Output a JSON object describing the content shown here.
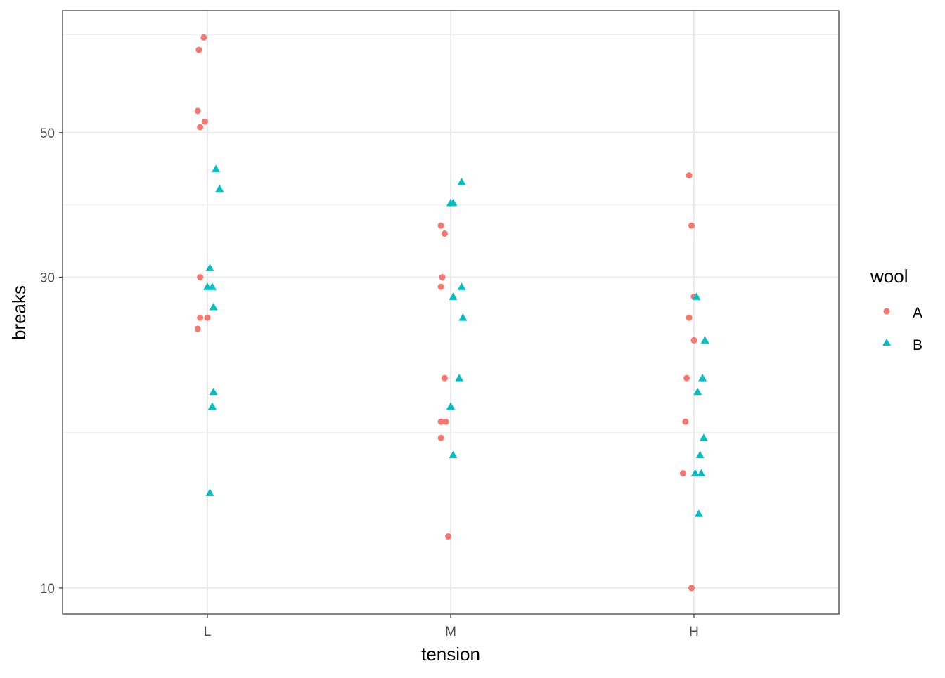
{
  "chart_data": {
    "type": "scatter",
    "title": "",
    "xlabel": "tension",
    "ylabel": "breaks",
    "y_scale": "log10",
    "ylim": [
      9.12,
      77.0
    ],
    "categories": [
      "L",
      "M",
      "H"
    ],
    "y_ticks": [
      10,
      30,
      50
    ],
    "y_tick_labels": [
      "10",
      "30",
      "50"
    ],
    "y_minor_gridlines": [
      17.32,
      38.73,
      70.7
    ],
    "grid": true,
    "legend": {
      "title": "wool",
      "placement": "right",
      "entries": [
        "A",
        "B"
      ]
    },
    "colors": {
      "A": "#F8766D",
      "B": "#00BFC4"
    },
    "series": [
      {
        "name": "A",
        "shape": "circle",
        "points": [
          {
            "x": "L",
            "jitter": -0.03,
            "y": 26
          },
          {
            "x": "L",
            "jitter": -0.03,
            "y": 30
          },
          {
            "x": "L",
            "jitter": -0.04,
            "y": 54
          },
          {
            "x": "L",
            "jitter": -0.04,
            "y": 25
          },
          {
            "x": "L",
            "jitter": -0.015,
            "y": 70
          },
          {
            "x": "L",
            "jitter": -0.01,
            "y": 52
          },
          {
            "x": "L",
            "jitter": -0.03,
            "y": 51
          },
          {
            "x": "L",
            "jitter": 0.0,
            "y": 26
          },
          {
            "x": "L",
            "jitter": -0.035,
            "y": 67
          },
          {
            "x": "M",
            "jitter": -0.04,
            "y": 18
          },
          {
            "x": "M",
            "jitter": -0.025,
            "y": 21
          },
          {
            "x": "M",
            "jitter": -0.04,
            "y": 29
          },
          {
            "x": "M",
            "jitter": -0.04,
            "y": 17
          },
          {
            "x": "M",
            "jitter": -0.01,
            "y": 12
          },
          {
            "x": "M",
            "jitter": -0.02,
            "y": 18
          },
          {
            "x": "M",
            "jitter": -0.025,
            "y": 35
          },
          {
            "x": "M",
            "jitter": -0.035,
            "y": 30
          },
          {
            "x": "M",
            "jitter": -0.04,
            "y": 36
          },
          {
            "x": "H",
            "jitter": -0.01,
            "y": 36
          },
          {
            "x": "H",
            "jitter": -0.03,
            "y": 21
          },
          {
            "x": "H",
            "jitter": 0.0,
            "y": 24
          },
          {
            "x": "H",
            "jitter": -0.035,
            "y": 18
          },
          {
            "x": "H",
            "jitter": -0.01,
            "y": 10
          },
          {
            "x": "H",
            "jitter": -0.02,
            "y": 43
          },
          {
            "x": "H",
            "jitter": 0.0,
            "y": 28
          },
          {
            "x": "H",
            "jitter": -0.045,
            "y": 15
          },
          {
            "x": "H",
            "jitter": -0.02,
            "y": 26
          }
        ]
      },
      {
        "name": "B",
        "shape": "triangle",
        "points": [
          {
            "x": "L",
            "jitter": 0.025,
            "y": 27
          },
          {
            "x": "L",
            "jitter": 0.01,
            "y": 14
          },
          {
            "x": "L",
            "jitter": 0.0,
            "y": 29
          },
          {
            "x": "L",
            "jitter": 0.02,
            "y": 19
          },
          {
            "x": "L",
            "jitter": 0.02,
            "y": 29
          },
          {
            "x": "L",
            "jitter": 0.01,
            "y": 31
          },
          {
            "x": "L",
            "jitter": 0.05,
            "y": 41
          },
          {
            "x": "L",
            "jitter": 0.025,
            "y": 20
          },
          {
            "x": "L",
            "jitter": 0.035,
            "y": 44
          },
          {
            "x": "M",
            "jitter": 0.045,
            "y": 42
          },
          {
            "x": "M",
            "jitter": 0.05,
            "y": 26
          },
          {
            "x": "M",
            "jitter": 0.0,
            "y": 19
          },
          {
            "x": "M",
            "jitter": 0.01,
            "y": 16
          },
          {
            "x": "M",
            "jitter": 0.0,
            "y": 39
          },
          {
            "x": "M",
            "jitter": 0.01,
            "y": 28
          },
          {
            "x": "M",
            "jitter": 0.035,
            "y": 21
          },
          {
            "x": "M",
            "jitter": 0.01,
            "y": 39
          },
          {
            "x": "M",
            "jitter": 0.045,
            "y": 29
          },
          {
            "x": "H",
            "jitter": 0.015,
            "y": 20
          },
          {
            "x": "H",
            "jitter": 0.035,
            "y": 21
          },
          {
            "x": "H",
            "jitter": 0.045,
            "y": 24
          },
          {
            "x": "H",
            "jitter": 0.04,
            "y": 17
          },
          {
            "x": "H",
            "jitter": 0.02,
            "y": 13
          },
          {
            "x": "H",
            "jitter": 0.005,
            "y": 15
          },
          {
            "x": "H",
            "jitter": 0.03,
            "y": 15
          },
          {
            "x": "H",
            "jitter": 0.025,
            "y": 16
          },
          {
            "x": "H",
            "jitter": 0.01,
            "y": 28
          }
        ]
      }
    ]
  }
}
